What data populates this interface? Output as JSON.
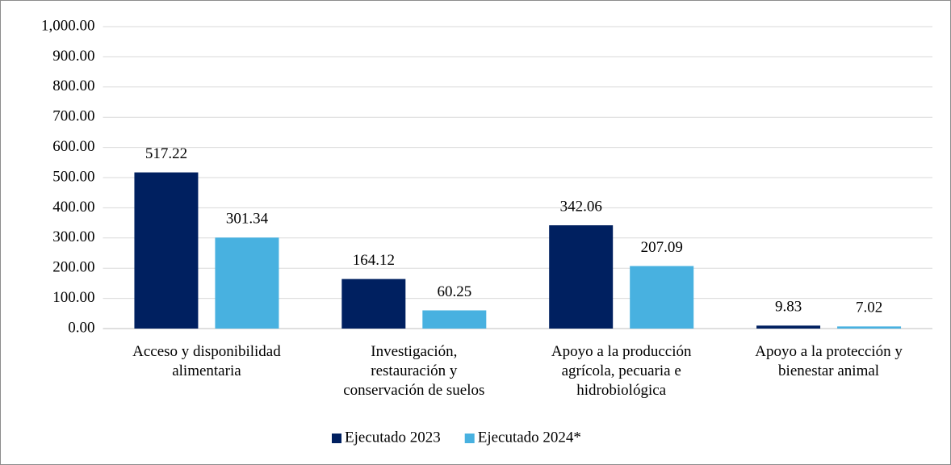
{
  "chart_data": {
    "type": "bar",
    "categories": [
      "Acceso y disponibilidad\nalimentaria",
      "Investigación,\nrestauración y\nconservación de suelos",
      "Apoyo a la producción\nagrícola, pecuaria e\nhidrobiológica",
      "Apoyo a la protección y\nbienestar animal"
    ],
    "series": [
      {
        "name": "Ejecutado 2023",
        "color": "#002060",
        "values": [
          517.22,
          164.12,
          342.06,
          9.83
        ]
      },
      {
        "name": "Ejecutado 2024*",
        "color": "#48b1e0",
        "values": [
          301.34,
          60.25,
          207.09,
          7.02
        ]
      }
    ],
    "ylim": [
      0,
      1000
    ],
    "yticks": [
      {
        "value": 0,
        "label": "0.00"
      },
      {
        "value": 100,
        "label": "100.00"
      },
      {
        "value": 200,
        "label": "200.00"
      },
      {
        "value": 300,
        "label": "300.00"
      },
      {
        "value": 400,
        "label": "400.00"
      },
      {
        "value": 500,
        "label": "500.00"
      },
      {
        "value": 600,
        "label": "600.00"
      },
      {
        "value": 700,
        "label": "700.00"
      },
      {
        "value": 800,
        "label": "800.00"
      },
      {
        "value": 900,
        "label": "900.00"
      },
      {
        "value": 1000,
        "label": "1,000.00"
      }
    ],
    "grid": true,
    "legend": "bottom"
  }
}
